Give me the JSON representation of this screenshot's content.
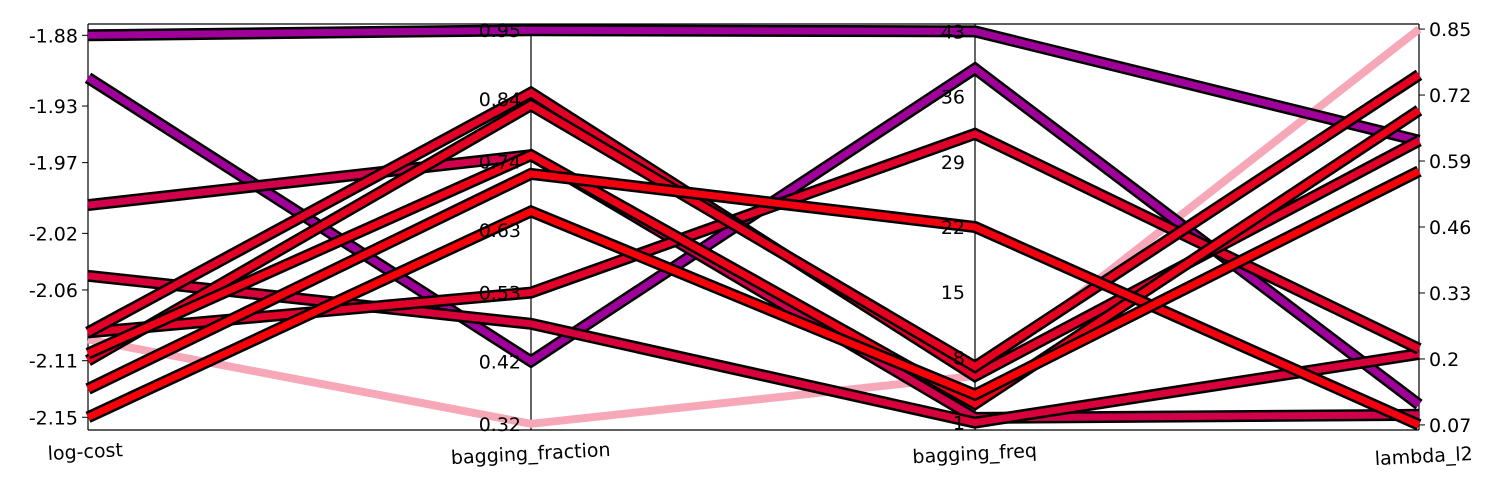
{
  "chart_data": {
    "type": "parallel_coordinates",
    "axes": [
      {
        "name": "log-cost",
        "range": [
          -2.159,
          -1.872
        ],
        "ticks": [
          "-1.88",
          "-1.93",
          "-1.97",
          "-2.02",
          "-2.06",
          "-2.11",
          "-2.15"
        ]
      },
      {
        "name": "bagging_fraction",
        "range": [
          0.31,
          0.96
        ],
        "ticks": [
          "0.95",
          "0.84",
          "0.74",
          "0.63",
          "0.53",
          "0.42",
          "0.32"
        ]
      },
      {
        "name": "bagging_freq",
        "range": [
          0.2,
          43.8
        ],
        "ticks": [
          "43",
          "36",
          "29",
          "22",
          "15",
          "8",
          "1"
        ]
      },
      {
        "name": "lambda_l2",
        "range": [
          0.06,
          0.86
        ],
        "ticks": [
          "0.85",
          "0.72",
          "0.59",
          "0.46",
          "0.33",
          "0.2",
          "0.07"
        ]
      }
    ],
    "lines": [
      {
        "values": [
          -2.095,
          0.32,
          6.0,
          0.85
        ],
        "color": "#f7a8b8",
        "outlined": false
      },
      {
        "values": [
          -1.88,
          0.95,
          43.0,
          0.63
        ],
        "color": "#a0009a",
        "outlined": true
      },
      {
        "values": [
          -1.91,
          0.42,
          39.0,
          0.11
        ],
        "color": "#a0009a",
        "outlined": true
      },
      {
        "values": [
          -2.0,
          0.75,
          1.5,
          0.09
        ],
        "color": "#d0004a",
        "outlined": true
      },
      {
        "values": [
          -2.05,
          0.48,
          1.0,
          0.21
        ],
        "color": "#d8003a",
        "outlined": true
      },
      {
        "values": [
          -2.09,
          0.53,
          32.0,
          0.22
        ],
        "color": "#e0002a",
        "outlined": true
      },
      {
        "values": [
          -2.09,
          0.85,
          6.0,
          0.63
        ],
        "color": "#e00028",
        "outlined": true
      },
      {
        "values": [
          -2.11,
          0.83,
          7.0,
          0.76
        ],
        "color": "#e60020",
        "outlined": true
      },
      {
        "values": [
          -2.105,
          0.75,
          3.0,
          0.69
        ],
        "color": "#ee0018",
        "outlined": true
      },
      {
        "values": [
          -2.13,
          0.72,
          22.0,
          0.07
        ],
        "color": "#f20010",
        "outlined": true
      },
      {
        "values": [
          -2.15,
          0.66,
          4.0,
          0.57
        ],
        "color": "#f80008",
        "outlined": true
      }
    ]
  }
}
